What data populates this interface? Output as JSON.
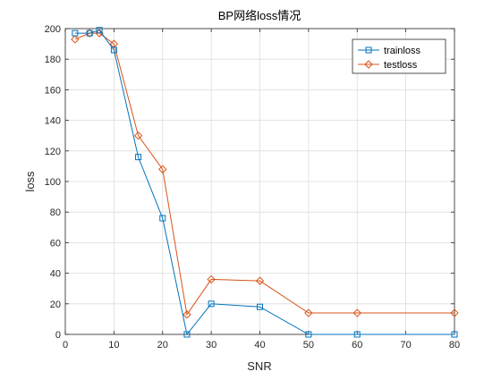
{
  "chart_data": {
    "type": "line",
    "title": "BP网络loss情况",
    "xlabel": "SNR",
    "ylabel": "loss",
    "xlim": [
      0,
      80
    ],
    "ylim": [
      0,
      200
    ],
    "xticks": [
      0,
      10,
      20,
      30,
      40,
      50,
      60,
      70,
      80
    ],
    "yticks": [
      0,
      20,
      40,
      60,
      80,
      100,
      120,
      140,
      160,
      180,
      200
    ],
    "grid": true,
    "legend_position": "top-right",
    "x": [
      2,
      5,
      7,
      10,
      15,
      20,
      25,
      30,
      40,
      50,
      60,
      80
    ],
    "series": [
      {
        "name": "trainloss",
        "color": "#0072BD",
        "marker": "square",
        "values": [
          197,
          197,
          199,
          186,
          116,
          76,
          0,
          20,
          18,
          0,
          0,
          0
        ]
      },
      {
        "name": "testloss",
        "color": "#D95319",
        "marker": "diamond",
        "values": [
          193,
          197,
          197,
          190,
          130,
          108,
          13,
          36,
          35,
          14,
          14,
          14
        ]
      }
    ]
  }
}
